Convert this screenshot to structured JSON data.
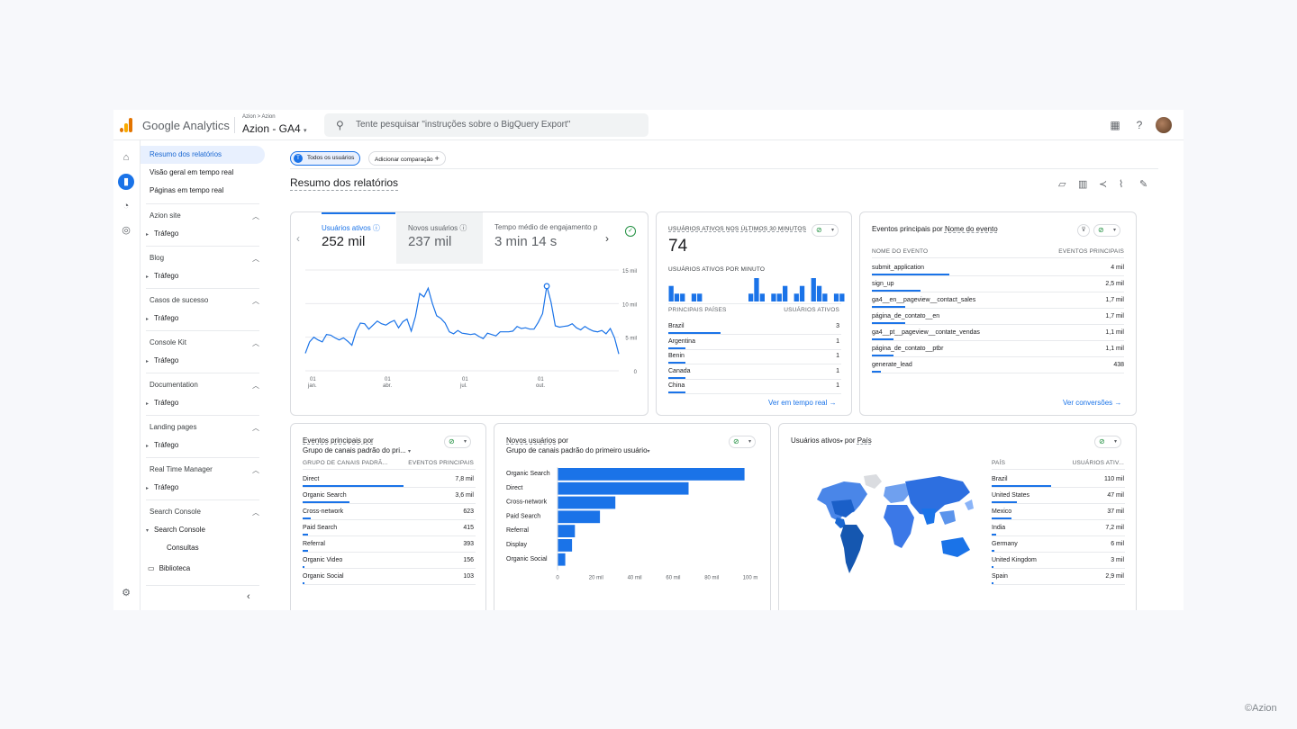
{
  "app": {
    "brand": "Google Analytics",
    "breadcrumb": "Azion > Azion",
    "property": "Azion - GA4",
    "search_placeholder": "Tente pesquisar \"instruções sobre o BigQuery Export\"",
    "colors": {
      "accent": "#1a73e8",
      "logo_orange": "#f9ab00",
      "logo_dark": "#e37400"
    }
  },
  "rail": {
    "icons": [
      "home-icon",
      "reports-icon",
      "explore-icon",
      "advertising-icon",
      "settings-icon"
    ]
  },
  "nav": {
    "top_links": [
      "Resumo dos relatórios",
      "Visão geral em tempo real",
      "Páginas em tempo real"
    ],
    "sections": [
      {
        "title": "Azion site",
        "child": "Tráfego"
      },
      {
        "title": "Blog",
        "child": "Tráfego"
      },
      {
        "title": "Casos de sucesso",
        "child": "Tráfego"
      },
      {
        "title": "Console Kit",
        "child": "Tráfego"
      },
      {
        "title": "Documentation",
        "child": "Tráfego"
      },
      {
        "title": "Landing pages",
        "child": "Tráfego"
      },
      {
        "title": "Real Time Manager",
        "child": "Tráfego"
      }
    ],
    "search_console": {
      "title": "Search Console",
      "child": "Search Console",
      "grandchild": "Consultas"
    },
    "library": "Biblioteca"
  },
  "header": {
    "chip_all_users": "Todos os usuários",
    "chip_badge": "T",
    "chip_add": "Adicionar comparação",
    "title": "Resumo dos relatórios"
  },
  "overview": {
    "metrics": [
      {
        "label": "Usuários ativos",
        "value": "252 mil"
      },
      {
        "label": "Novos usuários",
        "value": "237 mil"
      },
      {
        "label": "Tempo médio de engajamento p",
        "value": "3 min 14 s"
      }
    ],
    "y_ticks": [
      "15 mil",
      "10 mil",
      "5 mil",
      "0"
    ],
    "x_ticks": [
      {
        "day": "01",
        "month": "jan."
      },
      {
        "day": "01",
        "month": "abr."
      },
      {
        "day": "01",
        "month": "jul."
      },
      {
        "day": "01",
        "month": "out."
      }
    ]
  },
  "chart_data": [
    {
      "type": "line",
      "series": [
        {
          "name": "Usuários ativos",
          "values": [
            2600,
            4300,
            5000,
            4600,
            4300,
            5400,
            5300,
            4900,
            4600,
            4900,
            4400,
            3800,
            5900,
            7100,
            7000,
            6200,
            6800,
            7400,
            7000,
            6800,
            7200,
            7500,
            6400,
            7300,
            7700,
            5900,
            8100,
            11500,
            11000,
            12300,
            10000,
            8200,
            7800,
            7100,
            5800,
            5500,
            6000,
            5600,
            5500,
            5400,
            5500,
            5100,
            4800,
            5600,
            5400,
            5200,
            5800,
            5800,
            5800,
            5900,
            6600,
            6300,
            6400,
            6200,
            6200,
            7200,
            8500,
            12600,
            10200,
            6700,
            6500,
            6600,
            6700,
            7000,
            6400,
            6100,
            6600,
            6200,
            5900,
            5800,
            6000,
            5500,
            6300,
            4900,
            2500
          ]
        }
      ],
      "ylim": [
        0,
        15000
      ]
    },
    {
      "type": "bar",
      "title": "USUÁRIOS ATIVOS POR MINUTO",
      "values": [
        2,
        1,
        1,
        0,
        1,
        1,
        0,
        0,
        0,
        0,
        0,
        0,
        0,
        0,
        1,
        3,
        1,
        0,
        1,
        1,
        2,
        0,
        1,
        2,
        0,
        3,
        2,
        1,
        0,
        1,
        1
      ]
    },
    {
      "type": "bar",
      "title": "Novos usuários por Grupo de canais padrão do primeiro usuário",
      "categories": [
        "Organic Search",
        "Direct",
        "Cross-network",
        "Paid Search",
        "Referral",
        "Display",
        "Organic Social"
      ],
      "values": [
        97000,
        68000,
        30000,
        22000,
        9000,
        7500,
        4000
      ],
      "xlim": [
        0,
        100000
      ],
      "x_ticks": [
        "0",
        "20 mil",
        "40 mil",
        "60 mil",
        "80 mil",
        "100 m"
      ]
    }
  ],
  "realtime": {
    "title": "USUÁRIOS ATIVOS NOS ÚLTIMOS 30 MINUTOS",
    "value": "74",
    "per_minute_label": "USUÁRIOS ATIVOS POR MINUTO",
    "col1": "PRINCIPAIS PAÍSES",
    "col2": "USUÁRIOS ATIVOS",
    "rows": [
      {
        "name": "Brazil",
        "value": "3",
        "share": 1
      },
      {
        "name": "Argentina",
        "value": "1",
        "share": 0.33
      },
      {
        "name": "Benin",
        "value": "1",
        "share": 0.33
      },
      {
        "name": "Canada",
        "value": "1",
        "share": 0.33
      },
      {
        "name": "China",
        "value": "1",
        "share": 0.33
      }
    ],
    "link": "Ver em tempo real"
  },
  "events": {
    "title_a": "Eventos principais por ",
    "title_b": "Nome do evento",
    "col1": "NOME DO EVENTO",
    "col2": "EVENTOS PRINCIPAIS",
    "rows": [
      {
        "name": "submit_application",
        "value": "4 mil",
        "share": 1
      },
      {
        "name": "sign_up",
        "value": "2,5 mil",
        "share": 0.63
      },
      {
        "name": "ga4__en__pageview__contact_sales",
        "value": "1,7 mil",
        "share": 0.43
      },
      {
        "name": "página_de_contato__en",
        "value": "1,7 mil",
        "share": 0.43
      },
      {
        "name": "ga4__pt__pageview__contate_vendas",
        "value": "1,1 mil",
        "share": 0.28
      },
      {
        "name": "página_de_contato__ptbr",
        "value": "1,1 mil",
        "share": 0.28
      },
      {
        "name": "generate_lead",
        "value": "438",
        "share": 0.11
      }
    ],
    "link": "Ver conversões"
  },
  "channel_events": {
    "title_a": "Eventos principais por",
    "title_b": "Grupo de canais padrão do pri...",
    "col1": "GRUPO DE CANAIS PADRÃ...",
    "col2": "EVENTOS PRINCIPAIS",
    "rows": [
      {
        "name": "Direct",
        "value": "7,8 mil",
        "share": 1
      },
      {
        "name": "Organic Search",
        "value": "3,6 mil",
        "share": 0.46
      },
      {
        "name": "Cross-network",
        "value": "623",
        "share": 0.08
      },
      {
        "name": "Paid Search",
        "value": "415",
        "share": 0.05
      },
      {
        "name": "Referral",
        "value": "393",
        "share": 0.05
      },
      {
        "name": "Organic Video",
        "value": "156",
        "share": 0.02
      },
      {
        "name": "Organic Social",
        "value": "103",
        "share": 0.013
      }
    ]
  },
  "new_users": {
    "title_a": "Novos usuários",
    "title_b": " por",
    "title_c": "Grupo de canais padrão do primeiro usuário"
  },
  "countries": {
    "title_a": "Usuários ativos",
    "title_b": " por ",
    "title_c": "País",
    "col1": "PAÍS",
    "col2": "USUÁRIOS ATIV...",
    "rows": [
      {
        "name": "Brazil",
        "value": "110 mil",
        "share": 1
      },
      {
        "name": "United States",
        "value": "47 mil",
        "share": 0.43
      },
      {
        "name": "Mexico",
        "value": "37 mil",
        "share": 0.34
      },
      {
        "name": "India",
        "value": "7,2 mil",
        "share": 0.07
      },
      {
        "name": "Germany",
        "value": "6 mil",
        "share": 0.05
      },
      {
        "name": "United Kingdom",
        "value": "3 mil",
        "share": 0.03
      },
      {
        "name": "Spain",
        "value": "2,9 mil",
        "share": 0.03
      }
    ]
  },
  "watermark": "©Azion"
}
